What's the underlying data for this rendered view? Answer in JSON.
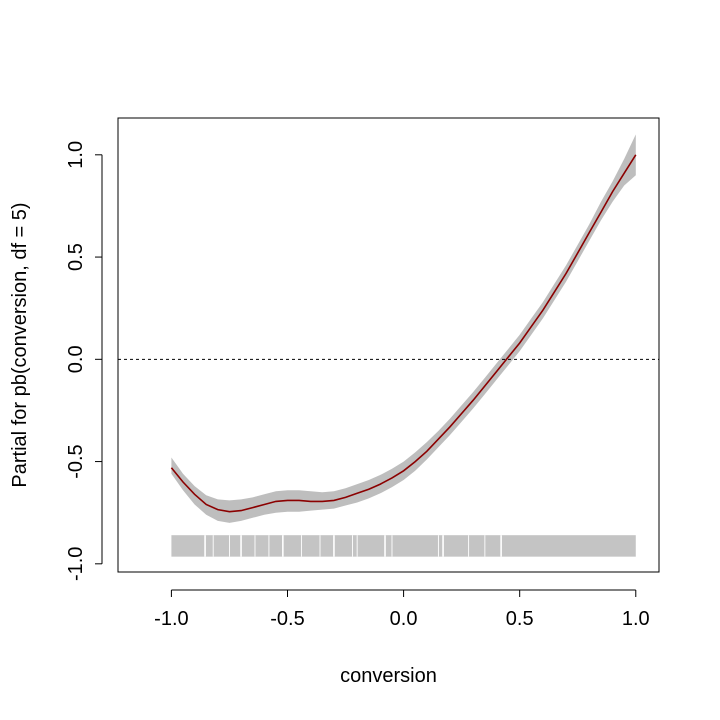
{
  "chart_data": {
    "type": "line",
    "title": "",
    "xlabel": "conversion",
    "ylabel": "Partial for pb(conversion, df = 5)",
    "xlim": [
      -1.23,
      1.1
    ],
    "ylim": [
      -1.04,
      1.18
    ],
    "grid": false,
    "x_ticks": [
      -1.0,
      -0.5,
      0.0,
      0.5,
      1.0
    ],
    "x_tick_labels": [
      "-1.0",
      "-0.5",
      "0.0",
      "0.5",
      "1.0"
    ],
    "y_ticks": [
      -1.0,
      -0.5,
      0.0,
      0.5,
      1.0
    ],
    "y_tick_labels": [
      "-1.0",
      "-0.5",
      "0.0",
      "0.5",
      "1.0"
    ],
    "reference_line": {
      "y": 0.0,
      "style": "dashed"
    },
    "colors": {
      "fit": "#8b0000",
      "band": "#bebebe",
      "rug": "#c4c4c4",
      "reference": "#000000"
    },
    "series": [
      {
        "x": [
          -1.0,
          -0.95,
          -0.9,
          -0.85,
          -0.8,
          -0.75,
          -0.7,
          -0.65,
          -0.6,
          -0.55,
          -0.5,
          -0.45,
          -0.4,
          -0.35,
          -0.3,
          -0.25,
          -0.2,
          -0.15,
          -0.1,
          -0.05,
          0.0,
          0.05,
          0.1,
          0.15,
          0.2,
          0.25,
          0.3,
          0.35,
          0.4,
          0.45,
          0.5,
          0.55,
          0.6,
          0.65,
          0.7,
          0.75,
          0.8,
          0.85,
          0.9,
          0.95,
          1.0
        ],
        "y": [
          -0.53,
          -0.6,
          -0.66,
          -0.71,
          -0.735,
          -0.745,
          -0.74,
          -0.725,
          -0.71,
          -0.695,
          -0.69,
          -0.69,
          -0.695,
          -0.695,
          -0.69,
          -0.675,
          -0.655,
          -0.635,
          -0.61,
          -0.58,
          -0.545,
          -0.5,
          -0.45,
          -0.39,
          -0.33,
          -0.265,
          -0.2,
          -0.13,
          -0.06,
          0.01,
          0.08,
          0.16,
          0.24,
          0.33,
          0.42,
          0.52,
          0.62,
          0.72,
          0.82,
          0.91,
          1.0
        ],
        "lower": [
          -0.56,
          -0.64,
          -0.71,
          -0.76,
          -0.79,
          -0.8,
          -0.79,
          -0.775,
          -0.76,
          -0.75,
          -0.745,
          -0.745,
          -0.74,
          -0.735,
          -0.73,
          -0.715,
          -0.7,
          -0.68,
          -0.655,
          -0.625,
          -0.59,
          -0.545,
          -0.49,
          -0.43,
          -0.37,
          -0.305,
          -0.24,
          -0.17,
          -0.1,
          -0.03,
          0.04,
          0.12,
          0.2,
          0.29,
          0.38,
          0.48,
          0.58,
          0.68,
          0.77,
          0.85,
          0.9
        ],
        "upper": [
          -0.48,
          -0.56,
          -0.62,
          -0.665,
          -0.685,
          -0.69,
          -0.685,
          -0.675,
          -0.66,
          -0.645,
          -0.64,
          -0.64,
          -0.645,
          -0.65,
          -0.645,
          -0.63,
          -0.61,
          -0.59,
          -0.565,
          -0.535,
          -0.5,
          -0.455,
          -0.405,
          -0.35,
          -0.29,
          -0.225,
          -0.16,
          -0.09,
          -0.02,
          0.05,
          0.12,
          0.2,
          0.28,
          0.37,
          0.46,
          0.56,
          0.66,
          0.77,
          0.87,
          0.98,
          1.1
        ]
      }
    ],
    "rug": {
      "y_bottom": -0.965,
      "y_top": -0.86,
      "x_min": -1.0,
      "x_max": 1.0,
      "gaps": [
        -0.855,
        -0.82,
        -0.75,
        -0.7,
        -0.64,
        -0.58,
        -0.52,
        -0.44,
        -0.36,
        -0.3,
        -0.22,
        -0.2,
        -0.08,
        -0.05,
        0.15,
        0.17,
        0.28,
        0.35,
        0.42
      ]
    }
  }
}
